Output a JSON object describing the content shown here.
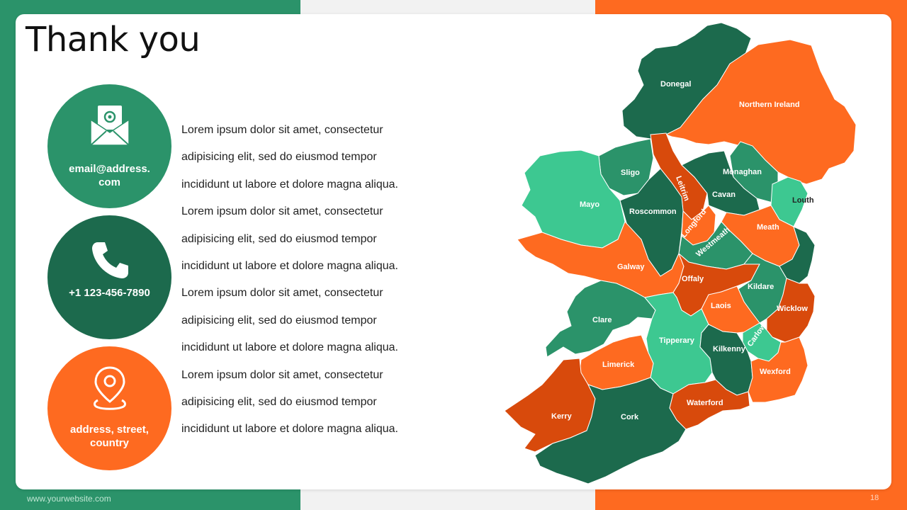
{
  "title": "Thank you",
  "contacts": {
    "email": {
      "icon": "envelope-at-icon",
      "label": "email@address.com"
    },
    "phone": {
      "icon": "phone-icon",
      "label": "+1 123-456-7890"
    },
    "address": {
      "icon": "location-pin-icon",
      "label": "address, street, country"
    }
  },
  "body_lines": [
    "Lorem ipsum dolor sit amet, consectetur",
    "adipisicing elit, sed do eiusmod tempor",
    "incididunt ut labore et dolore magna aliqua.",
    "Lorem ipsum dolor sit amet, consectetur",
    "adipisicing elit, sed do eiusmod tempor",
    "incididunt ut labore et dolore magna aliqua.",
    "Lorem ipsum dolor sit amet, consectetur",
    "adipisicing elit, sed do eiusmod tempor",
    "incididunt ut labore et dolore magna aliqua.",
    "Lorem ipsum dolor sit amet, consectetur",
    "adipisicing elit, sed do eiusmod tempor",
    "incididunt ut labore et dolore magna aliqua."
  ],
  "footer": {
    "website": "www.yourwebsite.com",
    "page": "18"
  },
  "colors": {
    "green": "#2b936a",
    "dark_green": "#1c6a4d",
    "light_green": "#3dc891",
    "orange": "#fe6a20",
    "dark_orange": "#d84a0c"
  },
  "map": {
    "regions": [
      {
        "key": "donegal",
        "name": "Donegal",
        "color": "#1c6a4d"
      },
      {
        "key": "northern_ireland",
        "name": "Northern Ireland",
        "color": "#fe6a20"
      },
      {
        "key": "sligo",
        "name": "Sligo",
        "color": "#2b936a"
      },
      {
        "key": "leitrim",
        "name": "Leitrim",
        "color": "#d84a0c"
      },
      {
        "key": "monaghan",
        "name": "Monaghan",
        "color": "#2b936a"
      },
      {
        "key": "cavan",
        "name": "Cavan",
        "color": "#1c6a4d"
      },
      {
        "key": "louth",
        "name": "Louth",
        "color": "#3dc891"
      },
      {
        "key": "mayo",
        "name": "Mayo",
        "color": "#3dc891"
      },
      {
        "key": "roscommon",
        "name": "Roscommon",
        "color": "#1c6a4d"
      },
      {
        "key": "longford",
        "name": "Longford",
        "color": "#fe6a20"
      },
      {
        "key": "meath",
        "name": "Meath",
        "color": "#fe6a20"
      },
      {
        "key": "westmeath",
        "name": "Westmeath",
        "color": "#2b936a"
      },
      {
        "key": "dublin",
        "name": "",
        "color": "#1c6a4d"
      },
      {
        "key": "galway",
        "name": "Galway",
        "color": "#fe6a20"
      },
      {
        "key": "offaly",
        "name": "Offaly",
        "color": "#d84a0c"
      },
      {
        "key": "kildare",
        "name": "Kildare",
        "color": "#2b936a"
      },
      {
        "key": "laois",
        "name": "Laois",
        "color": "#fe6a20"
      },
      {
        "key": "wicklow",
        "name": "Wicklow",
        "color": "#d84a0c"
      },
      {
        "key": "clare",
        "name": "Clare",
        "color": "#2b936a"
      },
      {
        "key": "tipperary",
        "name": "Tipperary",
        "color": "#3dc891"
      },
      {
        "key": "carlow",
        "name": "Carlow",
        "color": "#3dc891"
      },
      {
        "key": "kilkenny",
        "name": "Kilkenny",
        "color": "#1c6a4d"
      },
      {
        "key": "limerick",
        "name": "Limerick",
        "color": "#fe6a20"
      },
      {
        "key": "wexford",
        "name": "Wexford",
        "color": "#fe6a20"
      },
      {
        "key": "kerry",
        "name": "Kerry",
        "color": "#d84a0c"
      },
      {
        "key": "cork",
        "name": "Cork",
        "color": "#1c6a4d"
      },
      {
        "key": "waterford",
        "name": "Waterford",
        "color": "#d84a0c"
      }
    ]
  }
}
